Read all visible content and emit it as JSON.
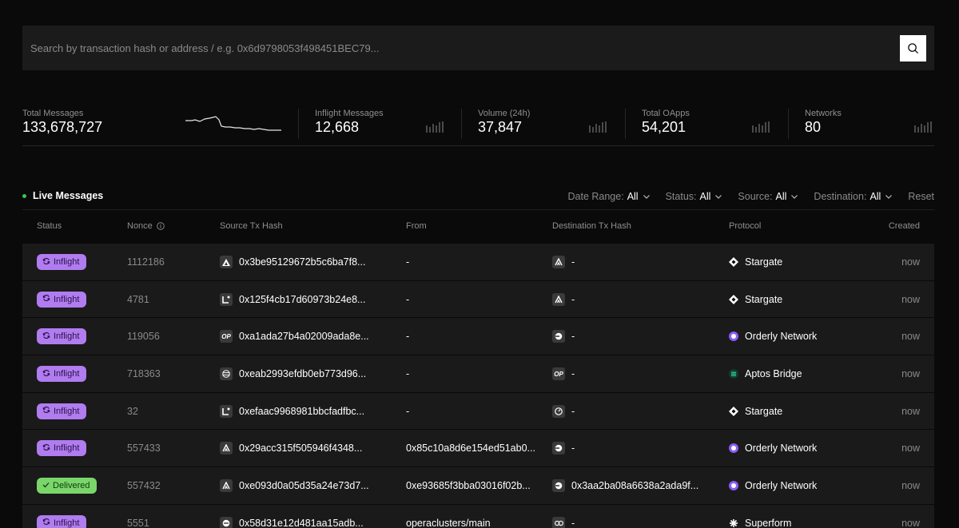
{
  "search": {
    "placeholder": "Search by transaction hash or address / e.g. 0x6d9798053f498451BEC79..."
  },
  "stats": [
    {
      "label": "Total Messages",
      "value": "133,678,727"
    },
    {
      "label": "Inflight Messages",
      "value": "12,668"
    },
    {
      "label": "Volume (24h)",
      "value": "37,847"
    },
    {
      "label": "Total OApps",
      "value": "54,201"
    },
    {
      "label": "Networks",
      "value": "80"
    }
  ],
  "live": {
    "title": "Live Messages"
  },
  "filters": [
    {
      "label": "Date Range:",
      "value": "All"
    },
    {
      "label": "Status:",
      "value": "All"
    },
    {
      "label": "Source:",
      "value": "All"
    },
    {
      "label": "Destination:",
      "value": "All"
    }
  ],
  "reset_label": "Reset",
  "columns": {
    "status": "Status",
    "nonce": "Nonce",
    "source": "Source Tx Hash",
    "from": "From",
    "destination": "Destination Tx Hash",
    "protocol": "Protocol",
    "created": "Created"
  },
  "colors": {
    "inflight": "#b07cf0",
    "delivered": "#7ad66a",
    "live_dot": "#3fc44a"
  },
  "rows": [
    {
      "status": "Inflight",
      "nonce": "1112186",
      "src_chain": "avalanche-icon",
      "src_hash": "0x3be95129672b5c6ba7f8...",
      "from": "-",
      "dst_chain": "arbitrum-icon",
      "dst_hash": "-",
      "protocol": "Stargate",
      "proto_icon": "stargate-icon",
      "created": "now"
    },
    {
      "status": "Inflight",
      "nonce": "4781",
      "src_chain": "linea-icon",
      "src_hash": "0x125f4cb17d60973b24e8...",
      "from": "-",
      "dst_chain": "arbitrum-icon",
      "dst_hash": "-",
      "protocol": "Stargate",
      "proto_icon": "stargate-icon",
      "created": "now"
    },
    {
      "status": "Inflight",
      "nonce": "119056",
      "src_chain": "optimism-icon",
      "src_chain_text": "OP",
      "src_hash": "0xa1ada27b4a02009ada8e...",
      "from": "-",
      "dst_chain": "base-icon",
      "dst_hash": "-",
      "protocol": "Orderly Network",
      "proto_icon": "orderly-icon",
      "created": "now"
    },
    {
      "status": "Inflight",
      "nonce": "718363",
      "src_chain": "aptos-icon",
      "src_hash": "0xeab2993efdb0eb773d96...",
      "from": "-",
      "dst_chain": "optimism-icon",
      "dst_chain_text": "OP",
      "dst_hash": "-",
      "protocol": "Aptos Bridge",
      "proto_icon": "aptos-bridge-icon",
      "created": "now"
    },
    {
      "status": "Inflight",
      "nonce": "32",
      "src_chain": "linea-icon",
      "src_hash": "0xefaac9968981bbcfadfbc...",
      "from": "-",
      "dst_chain": "gauge-icon",
      "dst_hash": "-",
      "protocol": "Stargate",
      "proto_icon": "stargate-icon",
      "created": "now"
    },
    {
      "status": "Inflight",
      "nonce": "557433",
      "src_chain": "arbitrum-icon",
      "src_hash": "0x29acc315f505946f4348...",
      "from": "0x85c10a8d6e154ed51ab0...",
      "dst_chain": "base-icon",
      "dst_hash": "-",
      "protocol": "Orderly Network",
      "proto_icon": "orderly-icon",
      "created": "now"
    },
    {
      "status": "Delivered",
      "nonce": "557432",
      "src_chain": "arbitrum-icon",
      "src_hash": "0xe093d0a05d35a24e73d7...",
      "from": "0xe93685f3bba03016f02b...",
      "dst_chain": "base-icon",
      "dst_hash": "0x3aa2ba08a6638a2ada9f...",
      "protocol": "Orderly Network",
      "proto_icon": "orderly-icon",
      "created": "now"
    },
    {
      "status": "Inflight",
      "nonce": "5551",
      "src_chain": "circle-icon",
      "src_hash": "0x58d31e12d481aa15adb...",
      "from": "operaclusters/main",
      "dst_chain": "link-icon",
      "dst_hash": "-",
      "protocol": "Superform",
      "proto_icon": "superform-icon",
      "created": "now"
    }
  ]
}
